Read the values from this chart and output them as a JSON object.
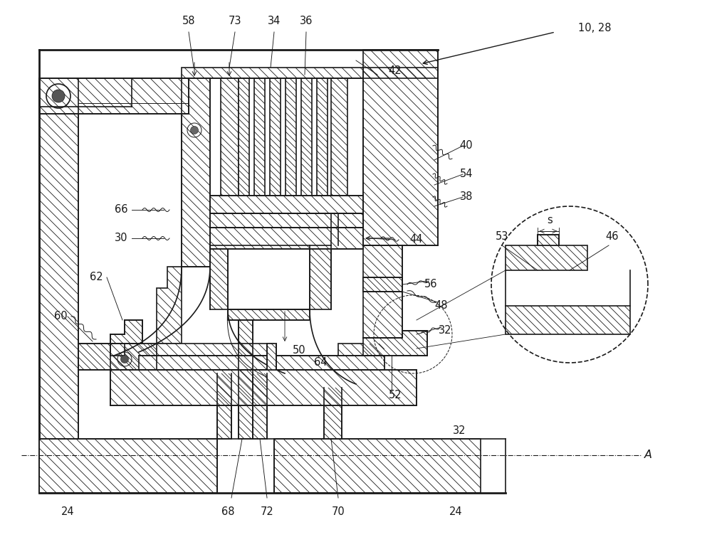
{
  "bg_color": "#ffffff",
  "line_color": "#1a1a1a",
  "fig_width": 10.0,
  "fig_height": 7.55,
  "dpi": 100
}
